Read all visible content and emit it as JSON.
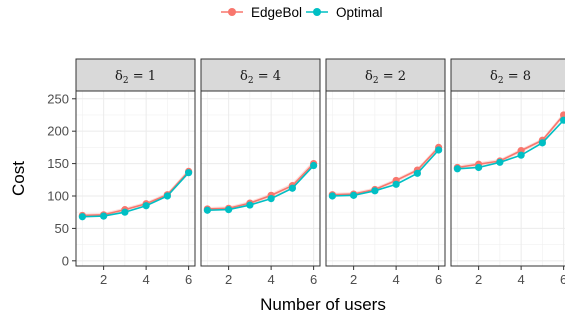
{
  "chart_data": {
    "type": "line",
    "xlabel": "Number of users",
    "ylabel": "Cost",
    "xlim": [
      0.7,
      6.3
    ],
    "ylim": [
      -8,
      262
    ],
    "xticks": [
      2,
      4,
      6
    ],
    "yticks": [
      0,
      50,
      100,
      150,
      200,
      250
    ],
    "x": [
      1,
      2,
      3,
      4,
      5,
      6
    ],
    "legend": {
      "position": "top"
    },
    "series_meta": [
      {
        "name": "EdgeBol",
        "color": "#F8766D"
      },
      {
        "name": "Optimal",
        "color": "#00BFC4"
      }
    ],
    "facets": [
      {
        "label_prefix": "δ",
        "label_sub": "2",
        "label_value": "1",
        "series": [
          {
            "name": "EdgeBol",
            "values": [
              70,
              71,
              79,
              88,
              102,
              138
            ],
            "lower": [
              67,
              68,
              76,
              85,
              99,
              134
            ],
            "upper": [
              73,
              74,
              82,
              91,
              105,
              142
            ]
          },
          {
            "name": "Optimal",
            "values": [
              68,
              69,
              75,
              85,
              100,
              136
            ]
          }
        ]
      },
      {
        "label_prefix": "δ",
        "label_sub": "2",
        "label_value": "4",
        "series": [
          {
            "name": "EdgeBol",
            "values": [
              80,
              81,
              89,
              101,
              116,
              150
            ],
            "lower": [
              77,
              78,
              86,
              98,
              112,
              145
            ],
            "upper": [
              83,
              84,
              92,
              104,
              120,
              155
            ]
          },
          {
            "name": "Optimal",
            "values": [
              78,
              79,
              86,
              96,
              112,
              147
            ]
          }
        ]
      },
      {
        "label_prefix": "δ",
        "label_sub": "2",
        "label_value": "2",
        "series": [
          {
            "name": "EdgeBol",
            "values": [
              102,
              103,
              110,
              124,
              140,
              175
            ],
            "lower": [
              99,
              100,
              107,
              121,
              137,
              171
            ],
            "upper": [
              105,
              106,
              113,
              127,
              143,
              179
            ]
          },
          {
            "name": "Optimal",
            "values": [
              100,
              101,
              108,
              118,
              135,
              171
            ]
          }
        ]
      },
      {
        "label_prefix": "δ",
        "label_sub": "2",
        "label_value": "8",
        "series": [
          {
            "name": "EdgeBol",
            "values": [
              144,
              149,
              154,
              170,
              186,
              225
            ],
            "lower": [
              141,
              146,
              151,
              167,
              183,
              221
            ],
            "upper": [
              147,
              152,
              157,
              173,
              189,
              229
            ]
          },
          {
            "name": "Optimal",
            "values": [
              142,
              144,
              152,
              163,
              182,
              217
            ]
          }
        ]
      }
    ]
  }
}
